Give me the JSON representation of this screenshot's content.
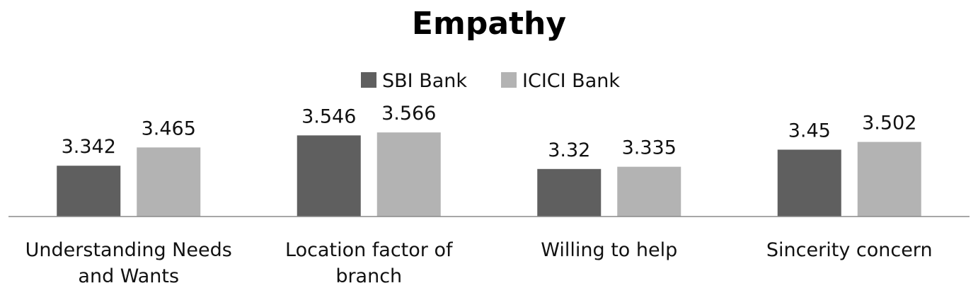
{
  "chart_data": {
    "type": "bar",
    "title": "Empathy",
    "xlabel": "",
    "ylabel": "",
    "categories": [
      [
        "Understanding Needs",
        "and Wants"
      ],
      [
        "Location factor of",
        "branch"
      ],
      [
        "Willing to help"
      ],
      [
        "Sincerity concern"
      ]
    ],
    "series": [
      {
        "name": "SBI Bank",
        "values": [
          3.342,
          3.546,
          3.32,
          3.45
        ],
        "labels": [
          "3.342",
          "3.546",
          "3.32",
          "3.45"
        ],
        "color": "#5f5f5f"
      },
      {
        "name": "ICICI Bank",
        "values": [
          3.465,
          3.566,
          3.335,
          3.502
        ],
        "labels": [
          "3.465",
          "3.566",
          "3.335",
          "3.502"
        ],
        "color": "#b3b3b3"
      }
    ],
    "ylim": [
      3.0,
      3.6
    ],
    "grid": false,
    "legend_position": "top-center"
  }
}
